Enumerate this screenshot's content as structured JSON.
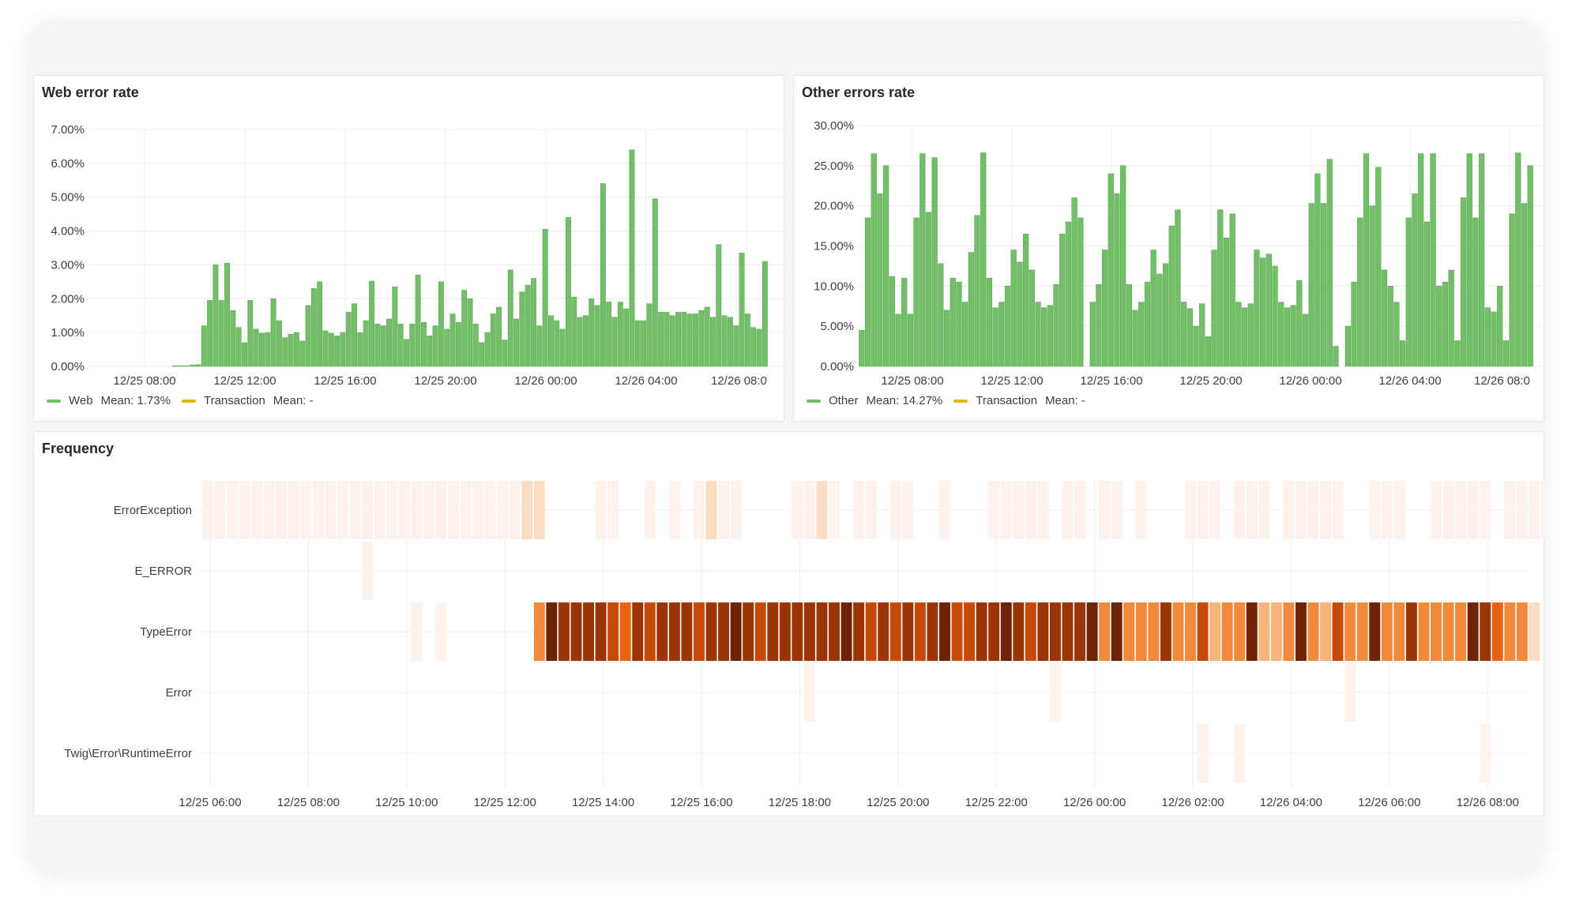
{
  "chart_data": [
    {
      "type": "bar",
      "title": "Web error rate",
      "y_ticks": [
        "7.00%",
        "6.00%",
        "5.00%",
        "4.00%",
        "3.00%",
        "2.00%",
        "1.00%",
        "0.00%"
      ],
      "ylim": [
        0,
        7
      ],
      "x_ticks": [
        "12/25 08:00",
        "12/25 12:00",
        "12/25 16:00",
        "12/25 20:00",
        "12/26 00:00",
        "12/26 04:00",
        "12/26 08:0"
      ],
      "grid": true,
      "legend_position": "bottom-left",
      "color": "#73bf69",
      "series": [
        {
          "name": "Web",
          "mean_label": "Mean: 1.73%",
          "color": "#73bf69",
          "values": [
            0.02,
            0.02,
            0.02,
            0.04,
            0.05,
            1.2,
            1.95,
            3.0,
            1.95,
            3.05,
            1.65,
            1.15,
            0.7,
            1.95,
            1.1,
            0.98,
            1.0,
            2.0,
            1.35,
            0.85,
            0.95,
            1.0,
            0.75,
            1.8,
            2.3,
            2.5,
            1.05,
            0.98,
            0.9,
            1.0,
            1.6,
            1.85,
            1.0,
            1.35,
            2.52,
            1.25,
            1.2,
            1.4,
            2.35,
            1.25,
            0.8,
            1.25,
            2.7,
            1.3,
            0.9,
            1.2,
            2.5,
            1.1,
            1.55,
            1.3,
            2.25,
            2.0,
            1.25,
            0.7,
            1.0,
            1.55,
            1.75,
            0.78,
            2.85,
            1.4,
            2.2,
            2.4,
            2.6,
            1.2,
            4.05,
            1.5,
            1.35,
            1.1,
            4.4,
            2.05,
            1.45,
            1.5,
            2.0,
            1.8,
            5.4,
            1.9,
            1.45,
            1.9,
            1.7,
            6.4,
            1.35,
            1.35,
            1.85,
            4.95,
            1.6,
            1.6,
            1.5,
            1.6,
            1.6,
            1.55,
            1.55,
            1.65,
            1.75,
            1.45,
            3.6,
            1.5,
            1.45,
            1.2,
            3.35,
            1.55,
            1.15,
            1.1,
            3.1
          ]
        },
        {
          "name": "Transaction",
          "mean_label": "Mean: -",
          "color": "#e0b400",
          "values": []
        }
      ]
    },
    {
      "type": "bar",
      "title": "Other errors rate",
      "y_ticks": [
        "30.00%",
        "25.00%",
        "20.00%",
        "15.00%",
        "10.00%",
        "5.00%",
        "0.00%"
      ],
      "ylim": [
        0,
        30
      ],
      "x_ticks": [
        "12/25 08:00",
        "12/25 12:00",
        "12/25 16:00",
        "12/25 20:00",
        "12/26 00:00",
        "12/26 04:00",
        "12/26 08:0"
      ],
      "grid": true,
      "legend_position": "bottom-left",
      "series": [
        {
          "name": "Other",
          "mean_label": "Mean: 14.27%",
          "color": "#73bf69",
          "values": [
            4.5,
            18.5,
            26.5,
            21.5,
            25.0,
            11.2,
            6.5,
            11.0,
            6.5,
            18.5,
            26.5,
            19.2,
            26.0,
            12.8,
            7.0,
            11.0,
            10.5,
            8.0,
            14.2,
            18.8,
            26.6,
            11.0,
            7.3,
            8.0,
            10.0,
            14.5,
            13.0,
            16.5,
            12.0,
            8.0,
            7.3,
            7.6,
            10.2,
            16.5,
            18.0,
            21.0,
            18.5,
            0.0,
            8.0,
            10.2,
            14.5,
            24.0,
            21.5,
            25.0,
            10.2,
            7.0,
            8.0,
            10.5,
            14.5,
            11.5,
            12.8,
            17.5,
            19.5,
            8.0,
            7.2,
            5.0,
            7.8,
            3.7,
            14.5,
            19.5,
            16.0,
            19.0,
            8.0,
            7.3,
            7.8,
            14.5,
            13.5,
            14.0,
            12.5,
            8.0,
            7.3,
            7.6,
            10.7,
            6.5,
            20.3,
            24.0,
            20.3,
            25.8,
            2.5,
            0.0,
            5.0,
            10.5,
            18.5,
            26.5,
            20.0,
            24.8,
            12.0,
            10.0,
            8.0,
            3.2,
            18.5,
            21.5,
            26.5,
            18.0,
            26.5,
            10.0,
            10.5,
            12.0,
            3.2,
            21.0,
            26.5,
            18.5,
            26.5,
            7.3,
            6.8,
            10.0,
            3.2,
            19.0,
            26.6,
            20.3,
            25.0
          ]
        },
        {
          "name": "Transaction",
          "mean_label": "Mean: -",
          "color": "#e0b400",
          "values": []
        }
      ]
    },
    {
      "type": "heatmap",
      "title": "Frequency",
      "rows": [
        "ErrorException",
        "E_ERROR",
        "TypeError",
        "Error",
        "Twig\\Error\\RuntimeError"
      ],
      "x_ticks": [
        "12/25 06:00",
        "12/25 08:00",
        "12/25 10:00",
        "12/25 12:00",
        "12/25 14:00",
        "12/25 16:00",
        "12/25 18:00",
        "12/25 20:00",
        "12/25 22:00",
        "12/26 00:00",
        "12/26 02:00",
        "12/26 04:00",
        "12/26 06:00",
        "12/26 08:00"
      ],
      "color_scale": [
        "#fdf3ec",
        "#fbdcc5",
        "#f9b47c",
        "#f28a3c",
        "#e6650f",
        "#c54a08",
        "#9c3506",
        "#6f2204"
      ],
      "cells": [
        {
          "row": 0,
          "slots": [
            0,
            1,
            2,
            3,
            4,
            5,
            6,
            7,
            8,
            9,
            10,
            11,
            12,
            13,
            14,
            15,
            16,
            17,
            18,
            19,
            20,
            21,
            22,
            23,
            24,
            25,
            26,
            27,
            32,
            33,
            36,
            38,
            40,
            41,
            42,
            43,
            48,
            49,
            50,
            51,
            53,
            54,
            56,
            57,
            60,
            64,
            65,
            66,
            67,
            68,
            70,
            71,
            73,
            74,
            76,
            80,
            81,
            82,
            84,
            85,
            86,
            88,
            89,
            90,
            91,
            92,
            95,
            96,
            97,
            100,
            101,
            102,
            103,
            104,
            106,
            107,
            108,
            109
          ],
          "levels": [
            0,
            0,
            0,
            0,
            0,
            0,
            0,
            0,
            0,
            0,
            0,
            0,
            0,
            0,
            0,
            0,
            0,
            0,
            0,
            0,
            0,
            0,
            0,
            0,
            0,
            0,
            1,
            1,
            0,
            0,
            0,
            0,
            0,
            1,
            0,
            0,
            0,
            0,
            1,
            0,
            0,
            0,
            0,
            0,
            0,
            0,
            0,
            0,
            0,
            0,
            0,
            0,
            0,
            0,
            0,
            0,
            0,
            0,
            0,
            0,
            0,
            0,
            0,
            0,
            0,
            0,
            0,
            0,
            0,
            0,
            0,
            0,
            0,
            0,
            0,
            0,
            0,
            0
          ]
        },
        {
          "row": 1,
          "slots": [
            13
          ],
          "levels": [
            0
          ]
        },
        {
          "row": 2,
          "slots": [
            17,
            19,
            27,
            28,
            29,
            30,
            31,
            32,
            33,
            34,
            35,
            36,
            37,
            38,
            39,
            40,
            41,
            42,
            43,
            44,
            45,
            46,
            47,
            48,
            49,
            50,
            51,
            52,
            53,
            54,
            55,
            56,
            57,
            58,
            59,
            60,
            61,
            62,
            63,
            64,
            65,
            66,
            67,
            68,
            69,
            70,
            71,
            72,
            73,
            74,
            75,
            76,
            77,
            78,
            79,
            80,
            81,
            82,
            83,
            84,
            85,
            86,
            87,
            88,
            89,
            90,
            91,
            92,
            93,
            94,
            95,
            96,
            97,
            98,
            99,
            100,
            101,
            102,
            103,
            104,
            105,
            106,
            107,
            108
          ],
          "levels": [
            0,
            0,
            3,
            7,
            6,
            6,
            6,
            6,
            5,
            4,
            6,
            5,
            6,
            6,
            6,
            5,
            6,
            6,
            7,
            6,
            5,
            6,
            6,
            6,
            6,
            6,
            6,
            7,
            6,
            5,
            6,
            5,
            6,
            5,
            6,
            7,
            5,
            5,
            6,
            6,
            7,
            6,
            5,
            6,
            6,
            6,
            6,
            7,
            3,
            7,
            3,
            3,
            3,
            6,
            3,
            3,
            5,
            2,
            3,
            3,
            7,
            2,
            2,
            3,
            7,
            3,
            2,
            5,
            3,
            3,
            7,
            3,
            3,
            6,
            3,
            3,
            3,
            3,
            7,
            6,
            4,
            3,
            3,
            1
          ]
        },
        {
          "row": 3,
          "slots": [
            49,
            69,
            93
          ],
          "levels": [
            0,
            0,
            0
          ]
        },
        {
          "row": 4,
          "slots": [
            81,
            84,
            104
          ],
          "levels": [
            0,
            0,
            0
          ]
        }
      ]
    }
  ]
}
